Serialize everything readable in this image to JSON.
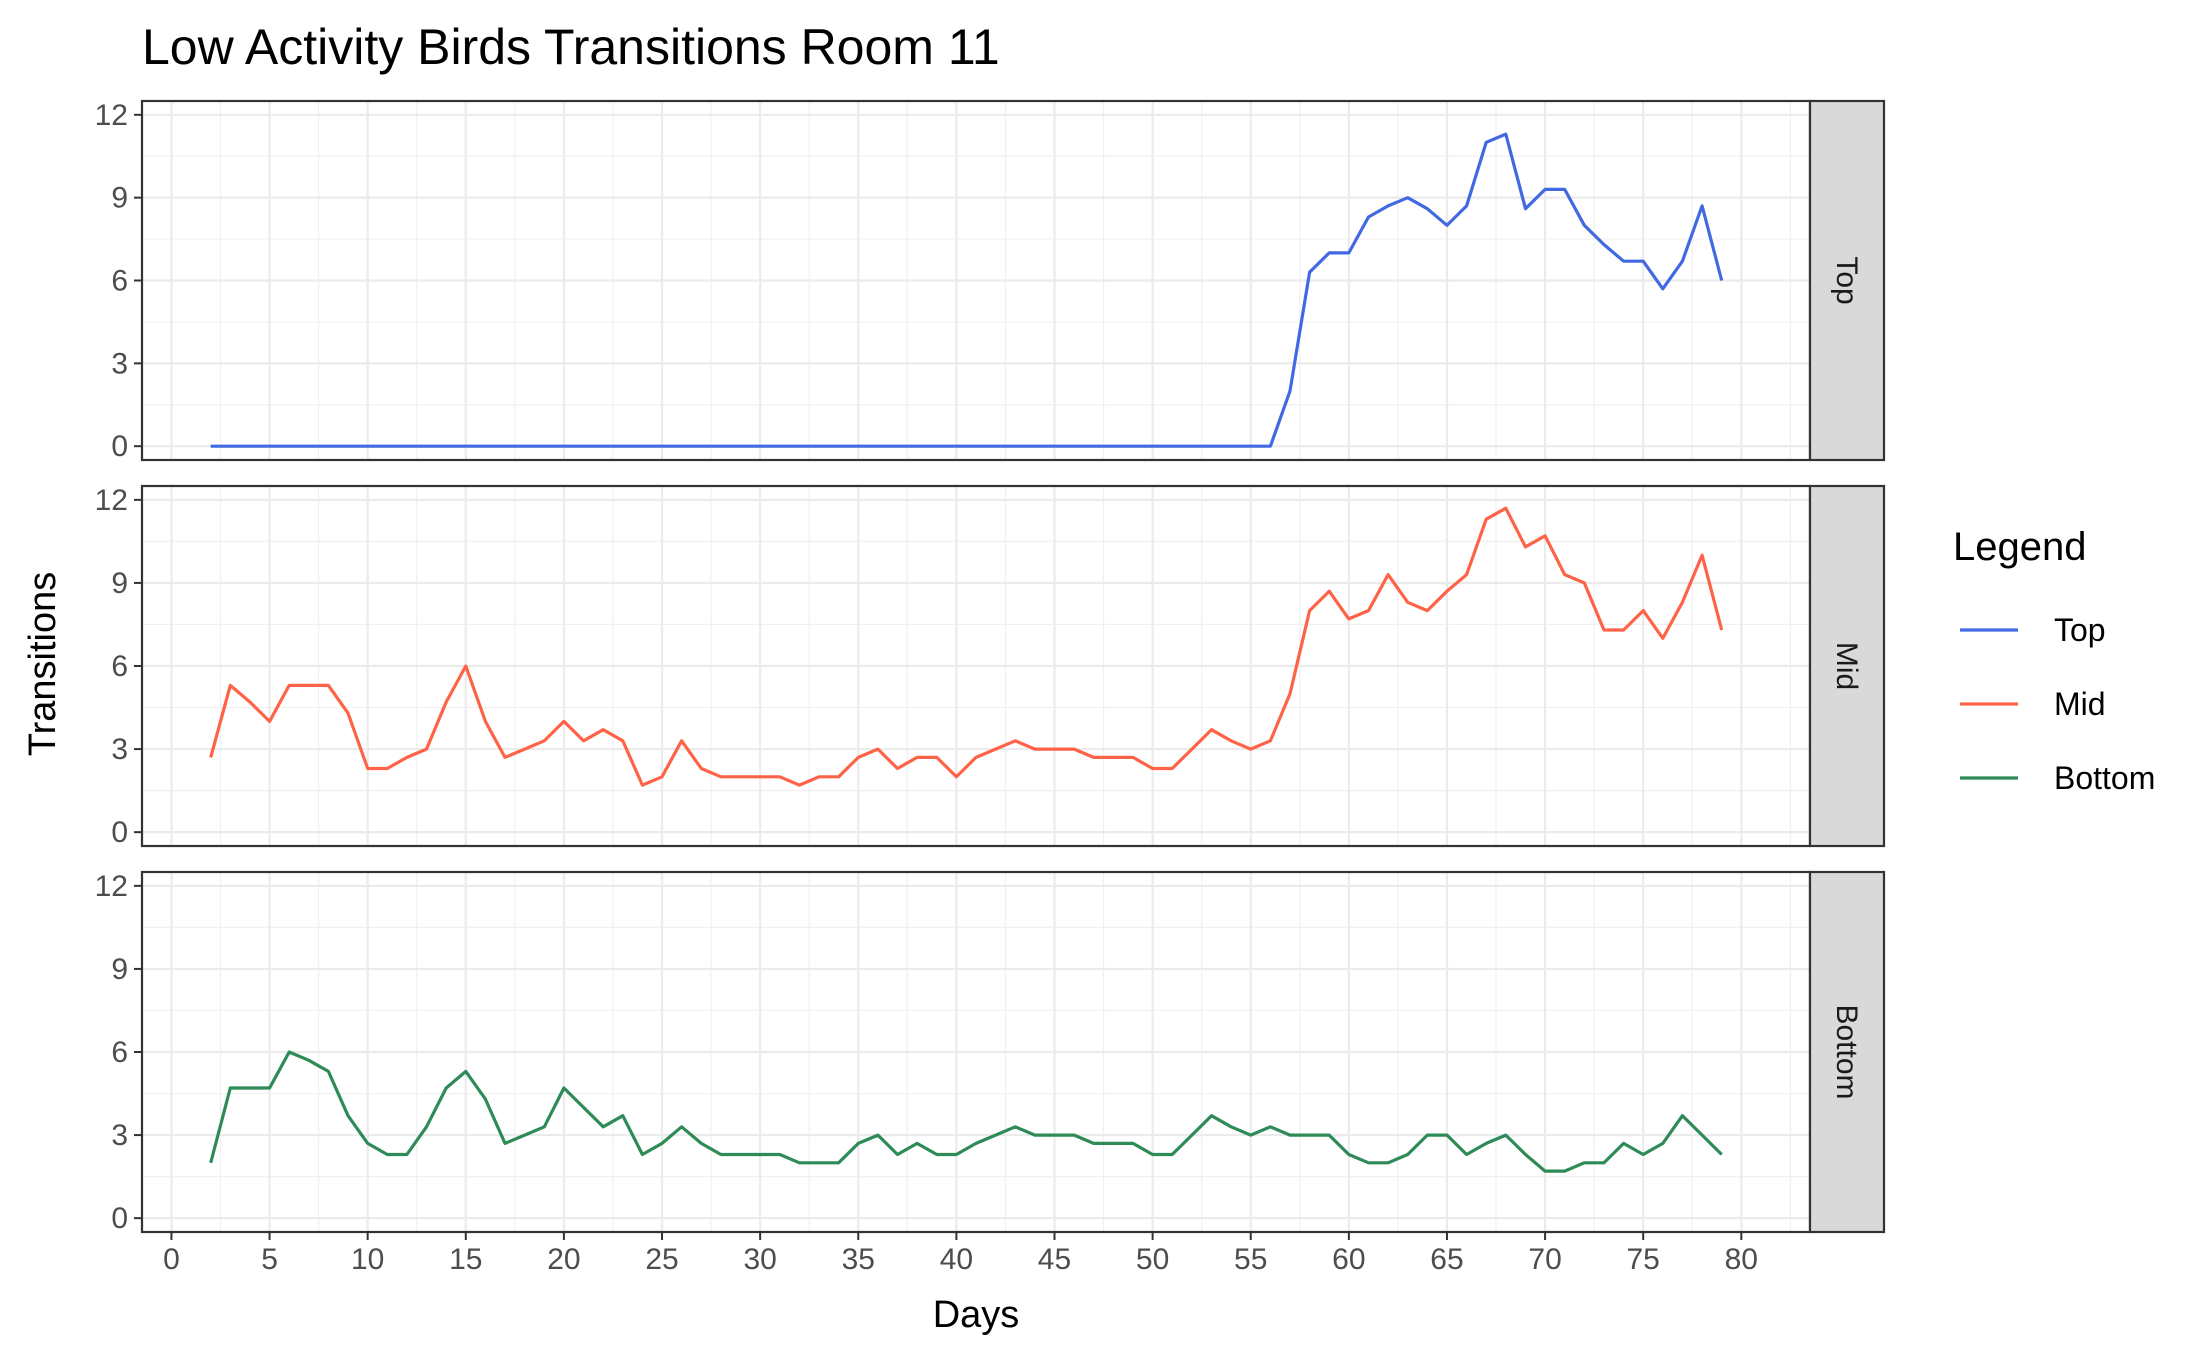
{
  "chart_data": {
    "type": "line",
    "title": "Low Activity Birds Transitions Room 11",
    "xlabel": "Days",
    "ylabel": "Transitions",
    "xlim": [
      -1.5,
      83.5
    ],
    "ylim": [
      -0.5,
      12.5
    ],
    "x_ticks": [
      0,
      5,
      10,
      15,
      20,
      25,
      30,
      35,
      40,
      45,
      50,
      55,
      60,
      65,
      70,
      75,
      80
    ],
    "y_ticks": [
      0,
      3,
      6,
      9,
      12
    ],
    "grid": true,
    "facets": [
      "Top",
      "Mid",
      "Bottom"
    ],
    "legend": {
      "title": "Legend",
      "position": "right",
      "entries": [
        "Top",
        "Mid",
        "Bottom"
      ]
    },
    "colors": {
      "Top": "#4169E1",
      "Mid": "#FF6347",
      "Bottom": "#2E8B57"
    },
    "x": [
      2,
      3,
      4,
      5,
      6,
      7,
      8,
      9,
      10,
      11,
      12,
      13,
      14,
      15,
      16,
      17,
      18,
      19,
      20,
      21,
      22,
      23,
      24,
      25,
      26,
      27,
      28,
      29,
      30,
      31,
      32,
      33,
      34,
      35,
      36,
      37,
      38,
      39,
      40,
      41,
      42,
      43,
      44,
      45,
      46,
      47,
      48,
      49,
      50,
      51,
      52,
      53,
      54,
      55,
      56,
      57,
      58,
      59,
      60,
      61,
      62,
      63,
      64,
      65,
      66,
      67,
      68,
      69,
      70,
      71,
      72,
      73,
      74,
      75,
      76,
      77,
      78,
      79
    ],
    "series": [
      {
        "name": "Top",
        "values": [
          0,
          0,
          0,
          0,
          0,
          0,
          0,
          0,
          0,
          0,
          0,
          0,
          0,
          0,
          0,
          0,
          0,
          0,
          0,
          0,
          0,
          0,
          0,
          0,
          0,
          0,
          0,
          0,
          0,
          0,
          0,
          0,
          0,
          0,
          0,
          0,
          0,
          0,
          0,
          0,
          0,
          0,
          0,
          0,
          0,
          0,
          0,
          0,
          0,
          0,
          0,
          0,
          0,
          0,
          0,
          2,
          6.3,
          7,
          7,
          8.3,
          8.7,
          9,
          8.6,
          8,
          8.7,
          11,
          11.3,
          8.6,
          9.3,
          9.3,
          8,
          7.3,
          6.7,
          6.7,
          5.7,
          6.7,
          8.7,
          6
        ]
      },
      {
        "name": "Mid",
        "values": [
          2.7,
          5.3,
          4.7,
          4,
          5.3,
          5.3,
          5.3,
          4.3,
          2.3,
          2.3,
          2.7,
          3,
          4.7,
          6,
          4,
          2.7,
          3,
          3.3,
          4,
          3.3,
          3.7,
          3.3,
          1.7,
          2,
          3.3,
          2.3,
          2,
          2,
          2,
          2,
          1.7,
          2,
          2,
          2.7,
          3,
          2.3,
          2.7,
          2.7,
          2,
          2.7,
          3,
          3.3,
          3,
          3,
          3,
          2.7,
          2.7,
          2.7,
          2.3,
          2.3,
          3,
          3.7,
          3.3,
          3,
          3.3,
          5,
          8,
          8.7,
          7.7,
          8,
          9.3,
          8.3,
          8,
          8.7,
          9.3,
          11.3,
          11.7,
          10.3,
          10.7,
          9.3,
          9,
          7.3,
          7.3,
          8,
          7,
          8.3,
          10,
          7.3
        ]
      },
      {
        "name": "Bottom",
        "values": [
          2,
          4.7,
          4.7,
          4.7,
          6,
          5.7,
          5.3,
          3.7,
          2.7,
          2.3,
          2.3,
          3.3,
          4.7,
          5.3,
          4.3,
          2.7,
          3,
          3.3,
          4.7,
          4,
          3.3,
          3.7,
          2.3,
          2.7,
          3.3,
          2.7,
          2.3,
          2.3,
          2.3,
          2.3,
          2,
          2,
          2,
          2.7,
          3,
          2.3,
          2.7,
          2.3,
          2.3,
          2.7,
          3,
          3.3,
          3,
          3,
          3,
          2.7,
          2.7,
          2.7,
          2.3,
          2.3,
          3,
          3.7,
          3.3,
          3,
          3.3,
          3,
          3,
          3,
          2.3,
          2,
          2,
          2.3,
          3,
          3,
          2.3,
          2.7,
          3,
          2.3,
          1.7,
          1.7,
          2,
          2,
          2.7,
          2.3,
          2.7,
          3.7,
          3,
          2.3
        ]
      }
    ]
  }
}
